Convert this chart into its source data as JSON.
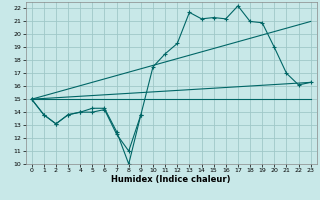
{
  "xlabel": "Humidex (Indice chaleur)",
  "background_color": "#c8e8e8",
  "grid_color": "#a0c8c8",
  "line_color": "#006666",
  "xlim": [
    -0.5,
    23.5
  ],
  "ylim": [
    10,
    22.5
  ],
  "xticks": [
    0,
    1,
    2,
    3,
    4,
    5,
    6,
    7,
    8,
    9,
    10,
    11,
    12,
    13,
    14,
    15,
    16,
    17,
    18,
    19,
    20,
    21,
    22,
    23
  ],
  "yticks": [
    10,
    11,
    12,
    13,
    14,
    15,
    16,
    17,
    18,
    19,
    20,
    21,
    22
  ],
  "series1_x": [
    0,
    1,
    2,
    3,
    4,
    5,
    6,
    7,
    8,
    9,
    10,
    11,
    12,
    13,
    14,
    15,
    16,
    17,
    18,
    19,
    20,
    21,
    22,
    23
  ],
  "series1_y": [
    15.0,
    13.8,
    13.1,
    13.8,
    14.0,
    14.3,
    14.3,
    12.5,
    10.0,
    13.8,
    17.5,
    18.5,
    19.3,
    21.7,
    21.2,
    21.3,
    21.2,
    22.2,
    21.0,
    20.9,
    19.0,
    17.0,
    16.1,
    16.3
  ],
  "series2_x": [
    0,
    1,
    2,
    3,
    4,
    5,
    6,
    7,
    8,
    9
  ],
  "series2_y": [
    15.0,
    13.8,
    13.1,
    13.8,
    14.0,
    14.0,
    14.2,
    12.3,
    11.0,
    13.8
  ],
  "series3_x": [
    0,
    23
  ],
  "series3_y": [
    15.0,
    21.0
  ],
  "series4_x": [
    0,
    23
  ],
  "series4_y": [
    15.0,
    16.3
  ],
  "series5_x": [
    0,
    23
  ],
  "series5_y": [
    15.0,
    15.0
  ]
}
